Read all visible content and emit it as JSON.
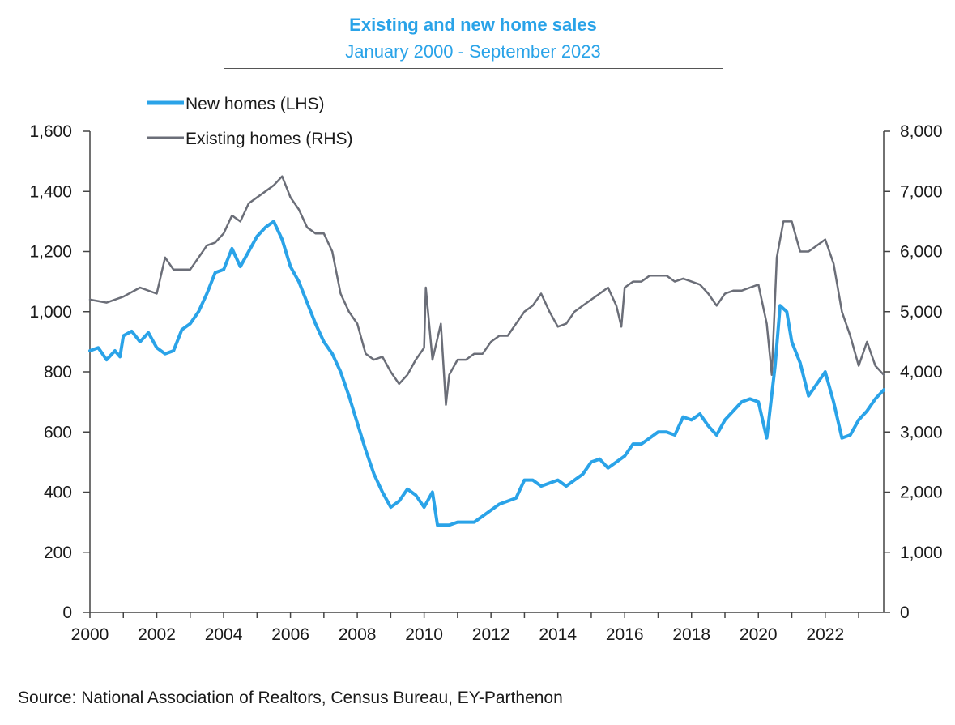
{
  "chart_data": {
    "type": "line",
    "title": "Existing and new home sales",
    "subtitle": "January 2000 - September 2023",
    "source": "Source: National Association of Realtors, Census Bureau, EY-Parthenon",
    "x_range": [
      2000,
      2023.75
    ],
    "x_ticks": [
      "2000",
      "2002",
      "2004",
      "2006",
      "2008",
      "2010",
      "2012",
      "2014",
      "2016",
      "2018",
      "2020",
      "2022"
    ],
    "y_left": {
      "range": [
        0,
        1600
      ],
      "ticks": [
        "0",
        "200",
        "400",
        "600",
        "800",
        "1,000",
        "1,200",
        "1,400",
        "1,600"
      ]
    },
    "y_right": {
      "range": [
        0,
        8000
      ],
      "ticks": [
        "0",
        "1,000",
        "2,000",
        "3,000",
        "4,000",
        "5,000",
        "6,000",
        "7,000",
        "8,000"
      ]
    },
    "series": [
      {
        "name": "New homes (LHS)",
        "axis": "left",
        "color": "#2aa3e8",
        "points": [
          [
            2000.0,
            870
          ],
          [
            2000.25,
            880
          ],
          [
            2000.5,
            840
          ],
          [
            2000.75,
            870
          ],
          [
            2000.9,
            850
          ],
          [
            2001.0,
            920
          ],
          [
            2001.25,
            935
          ],
          [
            2001.5,
            900
          ],
          [
            2001.75,
            930
          ],
          [
            2002.0,
            880
          ],
          [
            2002.25,
            860
          ],
          [
            2002.5,
            870
          ],
          [
            2002.75,
            940
          ],
          [
            2003.0,
            960
          ],
          [
            2003.25,
            1000
          ],
          [
            2003.5,
            1060
          ],
          [
            2003.75,
            1130
          ],
          [
            2004.0,
            1140
          ],
          [
            2004.25,
            1210
          ],
          [
            2004.5,
            1150
          ],
          [
            2004.75,
            1200
          ],
          [
            2005.0,
            1250
          ],
          [
            2005.25,
            1280
          ],
          [
            2005.5,
            1300
          ],
          [
            2005.75,
            1240
          ],
          [
            2006.0,
            1150
          ],
          [
            2006.25,
            1100
          ],
          [
            2006.5,
            1030
          ],
          [
            2006.75,
            960
          ],
          [
            2007.0,
            900
          ],
          [
            2007.25,
            860
          ],
          [
            2007.5,
            800
          ],
          [
            2007.75,
            720
          ],
          [
            2008.0,
            630
          ],
          [
            2008.25,
            540
          ],
          [
            2008.5,
            460
          ],
          [
            2008.75,
            400
          ],
          [
            2009.0,
            350
          ],
          [
            2009.25,
            370
          ],
          [
            2009.5,
            410
          ],
          [
            2009.75,
            390
          ],
          [
            2010.0,
            350
          ],
          [
            2010.25,
            400
          ],
          [
            2010.4,
            290
          ],
          [
            2010.75,
            290
          ],
          [
            2011.0,
            300
          ],
          [
            2011.25,
            300
          ],
          [
            2011.5,
            300
          ],
          [
            2011.75,
            320
          ],
          [
            2012.0,
            340
          ],
          [
            2012.25,
            360
          ],
          [
            2012.5,
            370
          ],
          [
            2012.75,
            380
          ],
          [
            2013.0,
            440
          ],
          [
            2013.25,
            440
          ],
          [
            2013.5,
            420
          ],
          [
            2013.75,
            430
          ],
          [
            2014.0,
            440
          ],
          [
            2014.25,
            420
          ],
          [
            2014.5,
            440
          ],
          [
            2014.75,
            460
          ],
          [
            2015.0,
            500
          ],
          [
            2015.25,
            510
          ],
          [
            2015.5,
            480
          ],
          [
            2015.75,
            500
          ],
          [
            2016.0,
            520
          ],
          [
            2016.25,
            560
          ],
          [
            2016.5,
            560
          ],
          [
            2016.75,
            580
          ],
          [
            2017.0,
            600
          ],
          [
            2017.25,
            600
          ],
          [
            2017.5,
            590
          ],
          [
            2017.75,
            650
          ],
          [
            2018.0,
            640
          ],
          [
            2018.25,
            660
          ],
          [
            2018.5,
            620
          ],
          [
            2018.75,
            590
          ],
          [
            2019.0,
            640
          ],
          [
            2019.25,
            670
          ],
          [
            2019.5,
            700
          ],
          [
            2019.75,
            710
          ],
          [
            2020.0,
            700
          ],
          [
            2020.25,
            580
          ],
          [
            2020.5,
            820
          ],
          [
            2020.65,
            1020
          ],
          [
            2020.85,
            1000
          ],
          [
            2021.0,
            900
          ],
          [
            2021.25,
            830
          ],
          [
            2021.5,
            720
          ],
          [
            2021.75,
            760
          ],
          [
            2022.0,
            800
          ],
          [
            2022.25,
            700
          ],
          [
            2022.5,
            580
          ],
          [
            2022.75,
            590
          ],
          [
            2023.0,
            640
          ],
          [
            2023.25,
            670
          ],
          [
            2023.5,
            710
          ],
          [
            2023.75,
            740
          ]
        ]
      },
      {
        "name": "Existing homes (RHS)",
        "axis": "right",
        "color": "#6b6e78",
        "points": [
          [
            2000.0,
            5200
          ],
          [
            2000.5,
            5150
          ],
          [
            2001.0,
            5250
          ],
          [
            2001.5,
            5400
          ],
          [
            2002.0,
            5300
          ],
          [
            2002.25,
            5900
          ],
          [
            2002.5,
            5700
          ],
          [
            2003.0,
            5700
          ],
          [
            2003.5,
            6100
          ],
          [
            2003.75,
            6150
          ],
          [
            2004.0,
            6300
          ],
          [
            2004.25,
            6600
          ],
          [
            2004.5,
            6500
          ],
          [
            2004.75,
            6800
          ],
          [
            2005.0,
            6900
          ],
          [
            2005.25,
            7000
          ],
          [
            2005.5,
            7100
          ],
          [
            2005.75,
            7250
          ],
          [
            2006.0,
            6900
          ],
          [
            2006.25,
            6700
          ],
          [
            2006.5,
            6400
          ],
          [
            2006.75,
            6300
          ],
          [
            2007.0,
            6300
          ],
          [
            2007.25,
            6000
          ],
          [
            2007.5,
            5300
          ],
          [
            2007.75,
            5000
          ],
          [
            2008.0,
            4800
          ],
          [
            2008.25,
            4300
          ],
          [
            2008.5,
            4200
          ],
          [
            2008.75,
            4250
          ],
          [
            2009.0,
            4000
          ],
          [
            2009.25,
            3800
          ],
          [
            2009.5,
            3950
          ],
          [
            2009.75,
            4200
          ],
          [
            2010.0,
            4400
          ],
          [
            2010.05,
            5400
          ],
          [
            2010.25,
            4200
          ],
          [
            2010.5,
            4800
          ],
          [
            2010.65,
            3450
          ],
          [
            2010.75,
            3950
          ],
          [
            2011.0,
            4200
          ],
          [
            2011.25,
            4200
          ],
          [
            2011.5,
            4300
          ],
          [
            2011.75,
            4300
          ],
          [
            2012.0,
            4500
          ],
          [
            2012.25,
            4600
          ],
          [
            2012.5,
            4600
          ],
          [
            2012.75,
            4800
          ],
          [
            2013.0,
            5000
          ],
          [
            2013.25,
            5100
          ],
          [
            2013.5,
            5300
          ],
          [
            2013.75,
            5000
          ],
          [
            2014.0,
            4750
          ],
          [
            2014.25,
            4800
          ],
          [
            2014.5,
            5000
          ],
          [
            2014.75,
            5100
          ],
          [
            2015.0,
            5200
          ],
          [
            2015.25,
            5300
          ],
          [
            2015.5,
            5400
          ],
          [
            2015.75,
            5100
          ],
          [
            2015.9,
            4750
          ],
          [
            2016.0,
            5400
          ],
          [
            2016.25,
            5500
          ],
          [
            2016.5,
            5500
          ],
          [
            2016.75,
            5600
          ],
          [
            2017.0,
            5600
          ],
          [
            2017.25,
            5600
          ],
          [
            2017.5,
            5500
          ],
          [
            2017.75,
            5550
          ],
          [
            2018.0,
            5500
          ],
          [
            2018.25,
            5450
          ],
          [
            2018.5,
            5300
          ],
          [
            2018.75,
            5100
          ],
          [
            2019.0,
            5300
          ],
          [
            2019.25,
            5350
          ],
          [
            2019.5,
            5350
          ],
          [
            2019.75,
            5400
          ],
          [
            2020.0,
            5450
          ],
          [
            2020.25,
            4800
          ],
          [
            2020.4,
            3950
          ],
          [
            2020.55,
            5900
          ],
          [
            2020.75,
            6500
          ],
          [
            2021.0,
            6500
          ],
          [
            2021.25,
            6000
          ],
          [
            2021.5,
            6000
          ],
          [
            2021.75,
            6100
          ],
          [
            2022.0,
            6200
          ],
          [
            2022.25,
            5800
          ],
          [
            2022.5,
            5000
          ],
          [
            2022.75,
            4600
          ],
          [
            2023.0,
            4100
          ],
          [
            2023.25,
            4500
          ],
          [
            2023.5,
            4100
          ],
          [
            2023.75,
            3950
          ]
        ]
      }
    ]
  }
}
